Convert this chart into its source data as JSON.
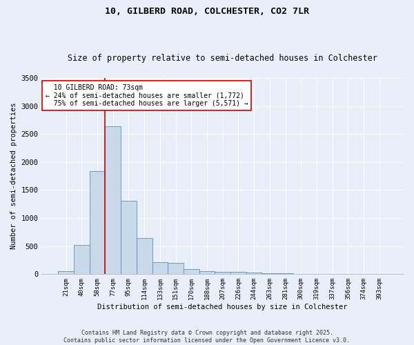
{
  "title_line1": "10, GILBERD ROAD, COLCHESTER, CO2 7LR",
  "title_line2": "Size of property relative to semi-detached houses in Colchester",
  "xlabel": "Distribution of semi-detached houses by size in Colchester",
  "ylabel": "Number of semi-detached properties",
  "categories": [
    "21sqm",
    "40sqm",
    "58sqm",
    "77sqm",
    "95sqm",
    "114sqm",
    "133sqm",
    "151sqm",
    "170sqm",
    "188sqm",
    "207sqm",
    "226sqm",
    "244sqm",
    "263sqm",
    "281sqm",
    "300sqm",
    "319sqm",
    "337sqm",
    "356sqm",
    "374sqm",
    "393sqm"
  ],
  "values": [
    55,
    525,
    1840,
    2640,
    1310,
    640,
    210,
    205,
    95,
    55,
    40,
    35,
    25,
    20,
    15,
    10,
    8,
    5,
    4,
    3,
    2
  ],
  "bar_color": "#c9d9ea",
  "bar_edge_color": "#5a8fc2",
  "property_bin_index": 3,
  "red_line_label": "10 GILBERD ROAD: 73sqm",
  "pct_smaller": 24,
  "pct_smaller_count": 1772,
  "pct_larger": 75,
  "pct_larger_count": 5571,
  "annotation_box_color": "#ffffff",
  "annotation_box_edge": "#cc0000",
  "red_line_color": "#cc0000",
  "ylim": [
    0,
    3500
  ],
  "yticks": [
    0,
    500,
    1000,
    1500,
    2000,
    2500,
    3000,
    3500
  ],
  "footnote": "Contains HM Land Registry data © Crown copyright and database right 2025.\nContains public sector information licensed under the Open Government Licence v3.0.",
  "bg_color": "#e8eff8",
  "plot_bg_color": "#e8eff8",
  "grid_color": "#ffffff",
  "title_fontsize": 9.5,
  "subtitle_fontsize": 8.5
}
